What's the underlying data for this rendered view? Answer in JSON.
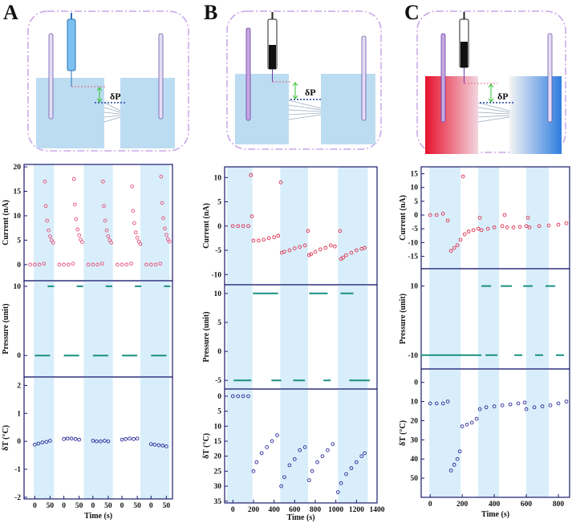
{
  "chart_data": [
    {
      "panel": "A",
      "diagram_label": "δP",
      "xlabel": "Time (s)",
      "xlim": [
        -35,
        450
      ],
      "xticks": [
        0,
        50,
        {
          "value": 95,
          "label": "0"
        },
        {
          "value": 145,
          "label": "50"
        },
        {
          "value": 190,
          "label": "0"
        },
        {
          "value": 240,
          "label": "50"
        },
        {
          "value": 285,
          "label": "0"
        },
        {
          "value": 335,
          "label": "50"
        },
        {
          "value": 380,
          "label": "0"
        },
        {
          "value": 430,
          "label": "50"
        }
      ],
      "bands": [
        [
          -3,
          63
        ],
        [
          160,
          255
        ],
        [
          345,
          440
        ]
      ],
      "subplots": [
        {
          "type": "scatter",
          "ylabel": "Current (nA)",
          "ylim": [
            -3.3,
            20.5
          ],
          "yticks": [
            0,
            5,
            10,
            15,
            20
          ],
          "color": "#e8507a",
          "x": [
            -15,
            0,
            15,
            30,
            33,
            36,
            40,
            45,
            50,
            55,
            60,
            80,
            95,
            110,
            125,
            128,
            131,
            135,
            140,
            145,
            150,
            155,
            175,
            190,
            205,
            220,
            223,
            226,
            230,
            235,
            240,
            245,
            250,
            270,
            285,
            300,
            315,
            318,
            321,
            325,
            330,
            335,
            340,
            345,
            365,
            380,
            395,
            410,
            413,
            416,
            420,
            425,
            430,
            435,
            440
          ],
          "values": [
            0,
            0,
            0,
            0.2,
            17,
            12,
            9,
            7,
            5.8,
            5,
            4.5,
            0,
            0,
            0,
            0.2,
            17.5,
            12.3,
            9.3,
            7.2,
            6,
            5.1,
            4.6,
            0,
            0,
            0,
            0.2,
            17,
            12,
            9,
            7,
            5.8,
            5,
            4.5,
            0,
            0,
            0,
            0.2,
            16,
            11,
            8.5,
            6.6,
            5.5,
            4.7,
            4.2,
            0,
            0,
            0,
            0.2,
            18,
            12.6,
            9.5,
            7.4,
            6.1,
            5.2,
            4.7
          ]
        },
        {
          "type": "line",
          "ylabel": "Pressure (unit)",
          "ylim": [
            -3.1,
            10.8
          ],
          "yticks": [
            0,
            10
          ],
          "series": [
            {
              "color": "#1a9080",
              "x": [
                42,
                63,
                null,
                137,
                158,
                null,
                232,
                253,
                null,
                327,
                348,
                null,
                422,
                443
              ],
              "values": [
                10,
                10,
                null,
                10,
                10,
                null,
                10,
                10,
                null,
                10,
                10,
                null,
                10,
                10
              ]
            },
            {
              "color": "#1a9080",
              "x": [
                0,
                50,
                null,
                95,
                145,
                null,
                190,
                240,
                null,
                285,
                335,
                null,
                380,
                430
              ],
              "values": [
                0,
                0,
                null,
                0,
                0,
                null,
                0,
                0,
                null,
                0,
                0,
                null,
                0,
                0
              ]
            }
          ]
        },
        {
          "type": "scatter",
          "ylabel": "δT (°C)",
          "ylim": [
            -2.06,
            2.3
          ],
          "yticks": [
            -2,
            -1,
            0,
            1,
            2
          ],
          "color": "#2a2a9a",
          "x": [
            0,
            12,
            25,
            38,
            50,
            95,
            107,
            120,
            133,
            145,
            190,
            202,
            215,
            228,
            240,
            285,
            297,
            310,
            323,
            335,
            380,
            392,
            405,
            418,
            430
          ],
          "values": [
            -0.12,
            -0.08,
            -0.04,
            -0.02,
            0.02,
            0.08,
            0.1,
            0.1,
            0.08,
            0.06,
            0.02,
            0,
            0,
            0.02,
            0,
            0.06,
            0.08,
            0.1,
            0.08,
            0.1,
            -0.1,
            -0.12,
            -0.14,
            -0.15,
            -0.18
          ]
        }
      ]
    },
    {
      "panel": "B",
      "diagram_label": "δP",
      "xlabel": "Time (s)",
      "xlim": [
        -80,
        1400
      ],
      "xticks": [
        0,
        200,
        400,
        600,
        800,
        1000,
        1200,
        1400
      ],
      "bands": [
        [
          -60,
          190
        ],
        [
          460,
          730
        ],
        [
          1020,
          1310
        ]
      ],
      "subplots": [
        {
          "type": "scatter",
          "ylabel": "Current (nA)",
          "ylim": [
            -12.1,
            12.2
          ],
          "yticks": [
            -10,
            -5,
            0,
            5,
            10
          ],
          "color": "#e03050",
          "x": [
            0,
            50,
            100,
            150,
            175,
            185,
            200,
            250,
            300,
            350,
            400,
            440,
            465,
            475,
            500,
            550,
            600,
            650,
            700,
            730,
            740,
            760,
            800,
            850,
            900,
            950,
            990,
            1040,
            1050,
            1070,
            1100,
            1150,
            1200,
            1250,
            1280
          ],
          "values": [
            0,
            0,
            0,
            0,
            10.5,
            2,
            -3,
            -3,
            -2.8,
            -2.5,
            -2.3,
            -2,
            9,
            -5.5,
            -5.3,
            -5,
            -4.6,
            -4.3,
            -4,
            -1,
            -6,
            -5.8,
            -5.3,
            -4.8,
            -4.5,
            -4,
            -4.2,
            -1,
            -6.8,
            -6.5,
            -6,
            -5.5,
            -5,
            -4.7,
            -4.5
          ]
        },
        {
          "type": "line",
          "ylabel": "Pressure (unit)",
          "ylim": [
            -6.5,
            11.5
          ],
          "yticks": [
            -5,
            0,
            5,
            10
          ],
          "series": [
            {
              "color": "#1a9080",
              "x": [
                195,
                440,
                null,
                740,
                920,
                null,
                1045,
                1170
              ],
              "values": [
                10,
                10,
                null,
                10,
                10,
                null,
                10,
                10
              ]
            },
            {
              "color": "#1a9080",
              "x": [
                8,
                180,
                null,
                375,
                470,
                null,
                585,
                700,
                null,
                880,
                950,
                null,
                1130,
                1330
              ],
              "values": [
                -5,
                -5,
                null,
                -5,
                -5,
                null,
                -5,
                -5,
                null,
                -5,
                -5,
                null,
                -5,
                -5
              ]
            }
          ]
        },
        {
          "type": "scatter",
          "ylabel": "δT (°C)",
          "ylim": [
            35.6,
            -2.4
          ],
          "yticks": [
            0,
            5,
            10,
            15,
            20,
            25,
            30,
            35
          ],
          "color": "#2a2a9a",
          "x": [
            0,
            50,
            100,
            150,
            200,
            230,
            280,
            330,
            380,
            430,
            470,
            500,
            550,
            600,
            650,
            700,
            740,
            770,
            820,
            870,
            920,
            970,
            1020,
            1050,
            1100,
            1150,
            1200,
            1250,
            1280
          ],
          "values": [
            0,
            0,
            0,
            0,
            25,
            22,
            19,
            17,
            15,
            13,
            30,
            27,
            23,
            21,
            18,
            17,
            28,
            25,
            22,
            20,
            18,
            16,
            32,
            29,
            26,
            24,
            22,
            20,
            19
          ]
        }
      ]
    },
    {
      "panel": "C",
      "diagram_label": "δP",
      "xlabel": "Time (s)",
      "xlim": [
        -56,
        870
      ],
      "xticks": [
        0,
        200,
        400,
        600,
        800
      ],
      "bands": [
        [
          -5,
          190
        ],
        [
          300,
          430
        ],
        [
          600,
          740
        ]
      ],
      "subplots": [
        {
          "type": "scatter",
          "ylabel": "Current (nA)",
          "ylim": [
            -19.5,
            17.5
          ],
          "yticks": [
            -15,
            -10,
            -5,
            0,
            5,
            10,
            15
          ],
          "color": "#e03050",
          "x": [
            0,
            40,
            80,
            110,
            130,
            150,
            170,
            190,
            205,
            215,
            240,
            270,
            300,
            310,
            320,
            360,
            400,
            450,
            465,
            480,
            520,
            560,
            600,
            610,
            620,
            680,
            740,
            800,
            850
          ],
          "values": [
            0,
            0,
            0.5,
            -2,
            -13,
            -12,
            -11,
            -9,
            14,
            -7,
            -6,
            -5.5,
            -5,
            -1,
            -5.5,
            -5,
            -4.5,
            -4,
            0,
            -4.5,
            -4.5,
            -4.3,
            -4,
            -1,
            -4.5,
            -4,
            -3.8,
            -3.5,
            -3
          ]
        },
        {
          "type": "line",
          "ylabel": "Pressure (unit)",
          "ylim": [
            -14,
            15
          ],
          "yticks": [
            -10,
            10
          ],
          "series": [
            {
              "color": "#1a9080",
              "x": [
                320,
                380,
                null,
                440,
                510,
                null,
                580,
                640,
                null,
                720,
                780
              ],
              "values": [
                10,
                10,
                null,
                10,
                10,
                null,
                10,
                10,
                null,
                10,
                10
              ]
            },
            {
              "color": "#1a9080",
              "x": [
                -60,
                320,
                null,
                345,
                420,
                null,
                525,
                575,
                null,
                655,
                705,
                null,
                785,
                835
              ],
              "values": [
                -10,
                -10,
                null,
                -10,
                -10,
                null,
                -10,
                -10,
                null,
                -10,
                -10,
                null,
                -10,
                -10
              ]
            }
          ]
        },
        {
          "type": "scatter",
          "ylabel": "δT (°C)",
          "ylim": [
            60,
            -7
          ],
          "yticks": [
            0,
            10,
            20,
            30,
            40,
            50
          ],
          "color": "#2a2a9a",
          "x": [
            0,
            40,
            80,
            110,
            130,
            150,
            170,
            185,
            200,
            230,
            260,
            290,
            310,
            350,
            400,
            450,
            500,
            550,
            590,
            600,
            650,
            700,
            750,
            800,
            850
          ],
          "values": [
            11,
            11,
            11,
            10,
            46,
            43,
            40,
            36,
            23,
            22,
            21,
            19,
            14,
            13,
            12.5,
            12,
            11.5,
            11,
            10.5,
            14,
            13,
            12.5,
            12,
            11,
            10
          ]
        }
      ]
    }
  ]
}
